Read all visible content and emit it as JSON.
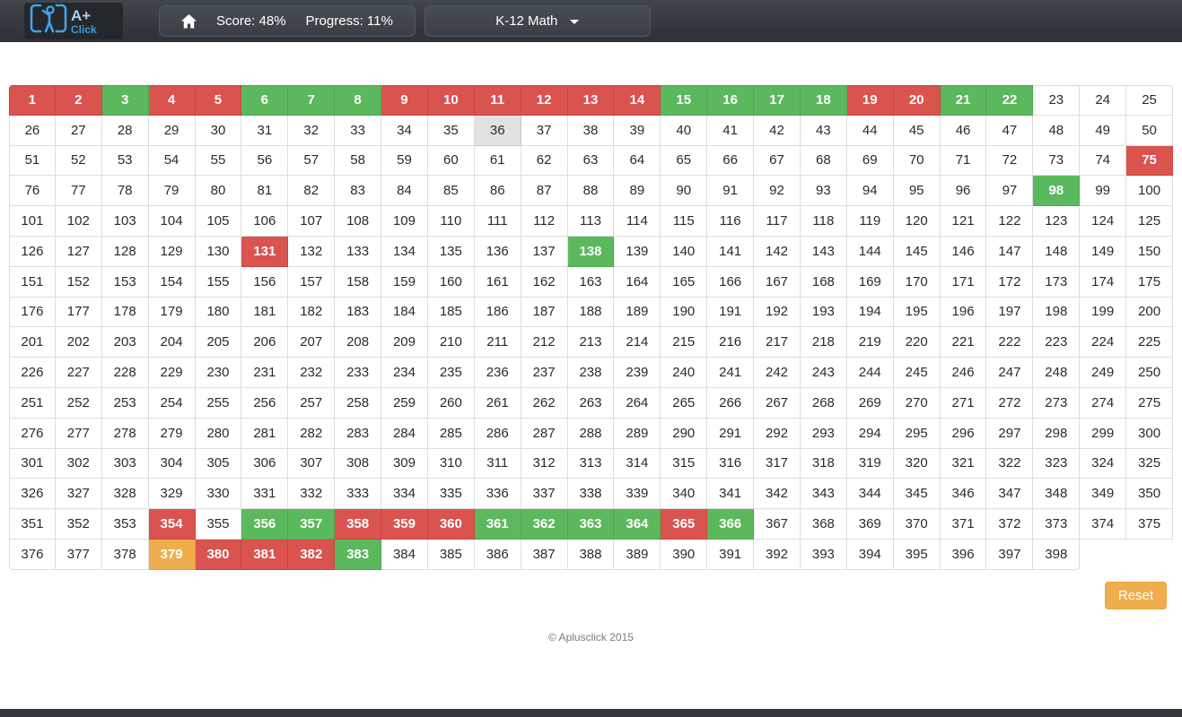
{
  "header": {
    "logo": {
      "line1": "A+",
      "line2": "Click"
    },
    "score_label": "Score: 48%",
    "progress_label": "Progress: 11%",
    "course_selector_label": "K-12 Math"
  },
  "grid": {
    "total": 398,
    "columns": 25,
    "states": {
      "red": [
        1,
        2,
        4,
        5,
        9,
        10,
        11,
        12,
        13,
        14,
        19,
        20,
        75,
        131,
        354,
        358,
        359,
        360,
        365,
        380,
        381,
        382
      ],
      "green": [
        3,
        6,
        7,
        8,
        15,
        16,
        17,
        18,
        21,
        22,
        98,
        138,
        356,
        357,
        361,
        362,
        363,
        364,
        366,
        383
      ],
      "orange": [
        379
      ],
      "selected": [
        36
      ]
    }
  },
  "colors": {
    "red": "#d9534f",
    "green": "#5cb85c",
    "orange": "#f0ad4e",
    "selected_gray": "#e2e2e2",
    "navbar": "#33373c",
    "accent_blue": "#3d9ae0"
  },
  "footer": {
    "reset_label": "Reset",
    "copyright": "© Aplusclick 2015"
  }
}
